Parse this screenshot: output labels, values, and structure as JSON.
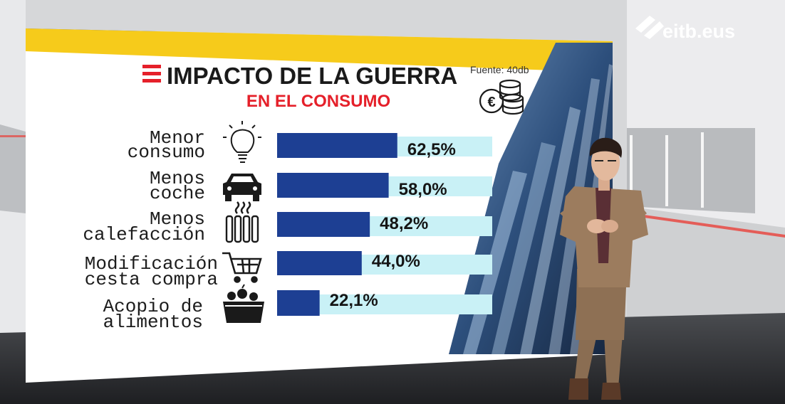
{
  "chart_data": {
    "type": "bar",
    "orientation": "horizontal",
    "title": "IMPACTO DE LA GUERRA",
    "subtitle": "EN EL CONSUMO",
    "source": "Fuente: 40db",
    "categories": [
      [
        "Menor",
        "consumo"
      ],
      [
        "Menos",
        "coche"
      ],
      [
        "Menos",
        "calefacción"
      ],
      [
        "Modificación",
        "cesta compra"
      ],
      [
        "Acopio de",
        "alimentos"
      ]
    ],
    "values": [
      62.5,
      58.0,
      48.2,
      44.0,
      22.1
    ],
    "value_labels": [
      "62,5%",
      "58,0%",
      "48,2%",
      "44,0%",
      "22,1%"
    ],
    "icons": [
      "lightbulb-icon",
      "car-icon",
      "radiator-icon",
      "shopping-cart-icon",
      "food-basket-icon"
    ],
    "xlim": [
      0,
      100
    ],
    "bar_color": "#1d3f93",
    "track_color": "#c9f1f6"
  },
  "broadcaster": {
    "logo_text": "eitb.eus"
  },
  "colors": {
    "title_red": "#e5202a",
    "band_yellow": "#f6cb1b",
    "band_blue": "#2440b8"
  }
}
